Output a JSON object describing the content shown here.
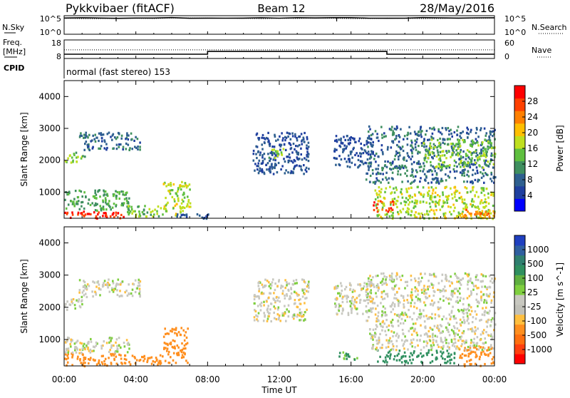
{
  "header": {
    "station": "Pykkvibaer (fitACF)",
    "beam": "Beam 12",
    "date": "28/May/2016"
  },
  "noise_panel": {
    "left_label": "N.Sky",
    "right_label": "N.Search",
    "left_ticks": [
      "10^5",
      "10^0"
    ],
    "right_ticks": [
      "10^5",
      "10^0"
    ]
  },
  "freq_panel": {
    "left_label_line1": "Freq.",
    "left_label_line2": "[MHz]",
    "right_label": "Nave",
    "left_ticks": [
      "18",
      "8"
    ],
    "right_ticks": [
      "60",
      "0"
    ]
  },
  "cpid_panel": {
    "label": "CPID",
    "text": "normal (fast stereo) 153"
  },
  "colors": {
    "power_scale": [
      "#0000ff",
      "#1f3f9f",
      "#2e5f8f",
      "#3f8f5f",
      "#5fbf3f",
      "#bfdf1f",
      "#ffbf00",
      "#ff8000",
      "#ff4000",
      "#ff0000"
    ],
    "velocity_scale": [
      "#1f3fbf",
      "#2f6f8f",
      "#2f8f5f",
      "#7fcf3f",
      "#c8c8c0",
      "#c0c0b8",
      "#ffbf3f",
      "#ff8f1f",
      "#ff4f0f",
      "#ff0000"
    ]
  },
  "chart_data": [
    {
      "type": "line",
      "panel": "noise",
      "series": [
        {
          "name": "N.Sky",
          "y_log10": [
            4.4,
            4.4,
            4.4,
            4.4,
            4.4,
            4.4,
            4.4,
            4.4,
            4.4,
            4.4,
            4.4,
            4.4,
            4.4,
            4.4,
            4.4,
            4.4,
            4.4,
            4.4,
            4.4,
            4.4,
            4.4,
            4.4,
            4.4,
            4.4,
            4.4
          ]
        },
        {
          "name": "N.Search",
          "y_log10": [
            4.3,
            4.3,
            4.3,
            4.3,
            4.3,
            4.3,
            4.3,
            4.3,
            4.3,
            4.3,
            4.3,
            4.3,
            4.3,
            4.3,
            4.3,
            4.3,
            4.3,
            4.3,
            4.3,
            4.3,
            4.3,
            4.3,
            4.3,
            4.3,
            4.3
          ]
        }
      ],
      "x_hours": [
        0,
        1,
        2,
        3,
        4,
        5,
        6,
        7,
        8,
        9,
        10,
        11,
        12,
        13,
        14,
        15,
        16,
        17,
        18,
        19,
        20,
        21,
        22,
        23,
        24
      ]
    },
    {
      "type": "line",
      "panel": "frequency",
      "series": [
        {
          "name": "Freq.",
          "x": [
            0,
            8,
            8,
            18,
            18,
            24
          ],
          "y": [
            10.3,
            10.3,
            11.8,
            11.8,
            10.3,
            10.3
          ]
        },
        {
          "name": "Nave",
          "x": [
            0,
            24
          ],
          "y": [
            28,
            28
          ]
        }
      ]
    },
    {
      "type": "heatmap",
      "panel": "power",
      "xlabel": "",
      "ylabel": "Slant Range [km]",
      "xlim": [
        0,
        24
      ],
      "ylim": [
        180,
        4500
      ],
      "yticks": [
        1000,
        2000,
        3000,
        4000
      ],
      "colorbar_label": "Power [dB]",
      "colorbar_ticks": [
        "28",
        "24",
        "20",
        "16",
        "12",
        "8",
        "4"
      ],
      "clim": [
        0,
        30
      ],
      "blobs": [
        {
          "x0": 0.0,
          "x1": 3.3,
          "y0": 200,
          "y1": 450,
          "value": 27
        },
        {
          "x0": 0.0,
          "x1": 3.6,
          "y0": 450,
          "y1": 1100,
          "value": 12
        },
        {
          "x0": 0.0,
          "x1": 1.2,
          "y0": 1950,
          "y1": 2300,
          "value": 14
        },
        {
          "x0": 0.8,
          "x1": 4.2,
          "y0": 2350,
          "y1": 2900,
          "value": 8
        },
        {
          "x0": 3.3,
          "x1": 5.5,
          "y0": 250,
          "y1": 600,
          "value": 14
        },
        {
          "x0": 5.5,
          "x1": 7.0,
          "y0": 300,
          "y1": 1350,
          "value": 16
        },
        {
          "x0": 6.0,
          "x1": 8.0,
          "y0": 200,
          "y1": 350,
          "value": 6
        },
        {
          "x0": 10.5,
          "x1": 13.6,
          "y0": 1600,
          "y1": 2900,
          "value": 6
        },
        {
          "x0": 11.2,
          "x1": 12.2,
          "y0": 2100,
          "y1": 2400,
          "value": 14
        },
        {
          "x0": 15.0,
          "x1": 17.2,
          "y0": 1800,
          "y1": 2800,
          "value": 6
        },
        {
          "x0": 16.8,
          "x1": 24.0,
          "y0": 1300,
          "y1": 3100,
          "value": 8
        },
        {
          "x0": 17.3,
          "x1": 24.0,
          "y0": 200,
          "y1": 1200,
          "value": 16
        },
        {
          "x0": 17.2,
          "x1": 18.5,
          "y0": 400,
          "y1": 750,
          "value": 26
        },
        {
          "x0": 22.0,
          "x1": 24.0,
          "y0": 200,
          "y1": 500,
          "value": 22
        },
        {
          "x0": 20.0,
          "x1": 24.0,
          "y0": 1800,
          "y1": 2700,
          "value": 14
        }
      ]
    },
    {
      "type": "heatmap",
      "panel": "velocity",
      "xlabel": "Time UT",
      "ylabel": "Slant Range [km]",
      "xlim": [
        0,
        24
      ],
      "ylim": [
        180,
        4500
      ],
      "xticks": [
        "00:00",
        "04:00",
        "08:00",
        "12:00",
        "16:00",
        "20:00",
        "00:00"
      ],
      "yticks": [
        1000,
        2000,
        3000,
        4000
      ],
      "colorbar_label": "Velocity [m s^-1]",
      "colorbar_ticks": [
        "1000",
        "500",
        "100",
        "25",
        "-25",
        "-100",
        "-500",
        "-1000"
      ],
      "blobs": [
        {
          "x0": 0.0,
          "x1": 3.3,
          "y0": 200,
          "y1": 600,
          "value": -300
        },
        {
          "x0": 0.0,
          "x1": 3.6,
          "y0": 600,
          "y1": 1100,
          "value": 0
        },
        {
          "x0": 0.0,
          "x1": 1.2,
          "y0": 1950,
          "y1": 2300,
          "value": 0
        },
        {
          "x0": 0.8,
          "x1": 4.2,
          "y0": 2350,
          "y1": 2900,
          "value": 0
        },
        {
          "x0": 3.3,
          "x1": 5.5,
          "y0": 250,
          "y1": 550,
          "value": -250
        },
        {
          "x0": 5.5,
          "x1": 6.9,
          "y0": 300,
          "y1": 1400,
          "value": -300
        },
        {
          "x0": 10.5,
          "x1": 13.6,
          "y0": 1600,
          "y1": 2900,
          "value": 0
        },
        {
          "x0": 15.0,
          "x1": 17.2,
          "y0": 1800,
          "y1": 2800,
          "value": 0
        },
        {
          "x0": 16.8,
          "x1": 24.0,
          "y0": 1300,
          "y1": 3100,
          "value": 0
        },
        {
          "x0": 17.3,
          "x1": 21.8,
          "y0": 300,
          "y1": 700,
          "value": 200
        },
        {
          "x0": 15.3,
          "x1": 16.3,
          "y0": 400,
          "y1": 650,
          "value": 80
        },
        {
          "x0": 22.0,
          "x1": 24.0,
          "y0": 200,
          "y1": 800,
          "value": -200
        },
        {
          "x0": 17.0,
          "x1": 24.0,
          "y0": 700,
          "y1": 1300,
          "value": 0
        }
      ]
    }
  ]
}
